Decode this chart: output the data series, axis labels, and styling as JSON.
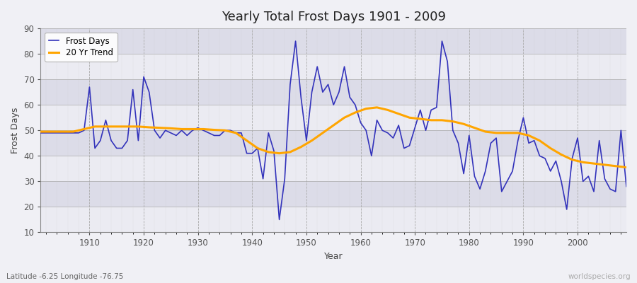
{
  "title": "Yearly Total Frost Days 1901 - 2009",
  "xlabel": "Year",
  "ylabel": "Frost Days",
  "subtitle": "Latitude -6.25 Longitude -76.75",
  "watermark": "worldspecies.org",
  "line_color": "#3333bb",
  "trend_color": "#FFA500",
  "bg_color": "#f0f0f5",
  "plot_bg_color": "#dcdce8",
  "ylim": [
    10,
    90
  ],
  "yticks": [
    10,
    20,
    30,
    40,
    50,
    60,
    70,
    80,
    90
  ],
  "legend_entries": [
    "Frost Days",
    "20 Yr Trend"
  ],
  "years": [
    1901,
    1902,
    1903,
    1904,
    1905,
    1906,
    1907,
    1908,
    1909,
    1910,
    1911,
    1912,
    1913,
    1914,
    1915,
    1916,
    1917,
    1918,
    1919,
    1920,
    1921,
    1922,
    1923,
    1924,
    1925,
    1926,
    1927,
    1928,
    1929,
    1930,
    1931,
    1932,
    1933,
    1934,
    1935,
    1936,
    1937,
    1938,
    1939,
    1940,
    1941,
    1942,
    1943,
    1944,
    1945,
    1946,
    1947,
    1948,
    1949,
    1950,
    1951,
    1952,
    1953,
    1954,
    1955,
    1956,
    1957,
    1958,
    1959,
    1960,
    1961,
    1962,
    1963,
    1964,
    1965,
    1966,
    1967,
    1968,
    1969,
    1970,
    1971,
    1972,
    1973,
    1974,
    1975,
    1976,
    1977,
    1978,
    1979,
    1980,
    1981,
    1982,
    1983,
    1984,
    1985,
    1986,
    1987,
    1988,
    1989,
    1990,
    1991,
    1992,
    1993,
    1994,
    1995,
    1996,
    1997,
    1998,
    1999,
    2000,
    2001,
    2002,
    2003,
    2004,
    2005,
    2006,
    2007,
    2008,
    2009
  ],
  "frost_days": [
    49,
    49,
    49,
    49,
    49,
    49,
    49,
    49,
    50,
    67,
    43,
    46,
    54,
    46,
    43,
    43,
    46,
    66,
    46,
    71,
    65,
    50,
    47,
    50,
    49,
    48,
    50,
    48,
    50,
    51,
    50,
    49,
    48,
    48,
    50,
    50,
    49,
    49,
    41,
    41,
    43,
    31,
    49,
    42,
    15,
    31,
    68,
    85,
    63,
    46,
    65,
    75,
    65,
    68,
    60,
    65,
    75,
    63,
    60,
    53,
    50,
    40,
    54,
    50,
    49,
    47,
    52,
    43,
    44,
    51,
    58,
    50,
    58,
    59,
    85,
    77,
    50,
    45,
    33,
    48,
    32,
    27,
    34,
    45,
    47,
    26,
    30,
    34,
    46,
    55,
    45,
    46,
    40,
    39,
    34,
    38,
    30,
    19,
    39,
    47,
    30,
    32,
    26,
    46,
    31,
    27,
    26,
    50,
    28
  ],
  "trend_years": [
    1901,
    1903,
    1905,
    1907,
    1909,
    1911,
    1913,
    1915,
    1917,
    1919,
    1921,
    1923,
    1925,
    1927,
    1929,
    1931,
    1933,
    1935,
    1937,
    1939,
    1941,
    1943,
    1945,
    1947,
    1949,
    1951,
    1953,
    1955,
    1957,
    1959,
    1961,
    1963,
    1965,
    1967,
    1969,
    1971,
    1973,
    1975,
    1977,
    1979,
    1981,
    1983,
    1985,
    1987,
    1989,
    1991,
    1993,
    1995,
    1997,
    1999,
    2001,
    2003,
    2005,
    2007,
    2009
  ],
  "trend_values": [
    49.5,
    49.5,
    49.5,
    49.5,
    50.5,
    51.5,
    51.5,
    51.5,
    51.5,
    51.5,
    51.2,
    51.0,
    50.8,
    50.5,
    50.5,
    50.5,
    50.2,
    50.0,
    49.0,
    46.0,
    43.0,
    41.5,
    41.0,
    41.5,
    43.5,
    46.0,
    49.0,
    52.0,
    55.0,
    57.0,
    58.5,
    59.0,
    58.0,
    56.5,
    55.0,
    54.5,
    54.0,
    54.0,
    53.5,
    52.5,
    51.0,
    49.5,
    49.0,
    49.0,
    49.0,
    48.0,
    46.0,
    43.0,
    40.5,
    38.5,
    37.5,
    37.0,
    36.5,
    36.0,
    35.5
  ]
}
